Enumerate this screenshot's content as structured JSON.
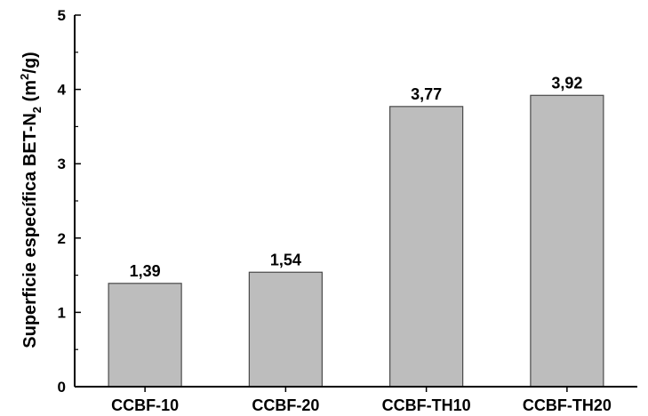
{
  "chart_data": {
    "type": "bar",
    "categories": [
      "CCBF-10",
      "CCBF-20",
      "CCBF-TH10",
      "CCBF-TH20"
    ],
    "values": [
      1.39,
      1.54,
      3.77,
      3.92
    ],
    "data_labels": [
      "1,39",
      "1,54",
      "3,77",
      "3,92"
    ],
    "ylabel": "Superficie específica BET-N2 (m2/g)",
    "ylabel_parts": {
      "main": "Superficie específica BET-N",
      "sub": "2",
      "open": " (m",
      "sup": "2",
      "close": "/g)"
    },
    "xlabel": "",
    "ylim": [
      0,
      5
    ],
    "yticks": [
      "0",
      "1",
      "2",
      "3",
      "4",
      "5"
    ],
    "grid": false,
    "bar_color": "#bdbdbd",
    "bar_edge_color": "#4a4a4a"
  }
}
